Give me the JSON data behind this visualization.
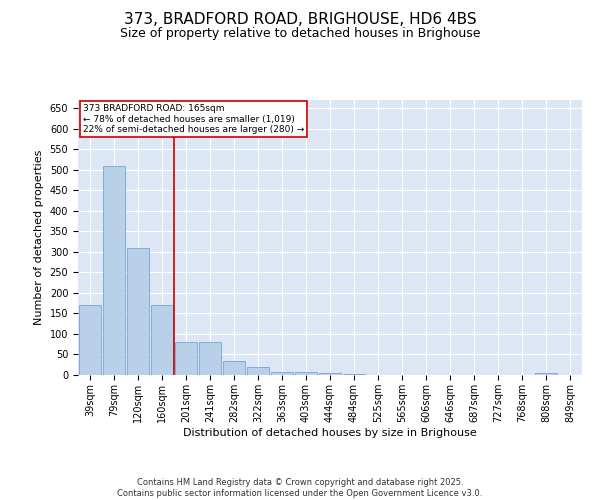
{
  "title": "373, BRADFORD ROAD, BRIGHOUSE, HD6 4BS",
  "subtitle": "Size of property relative to detached houses in Brighouse",
  "xlabel": "Distribution of detached houses by size in Brighouse",
  "ylabel": "Number of detached properties",
  "categories": [
    "39sqm",
    "79sqm",
    "120sqm",
    "160sqm",
    "201sqm",
    "241sqm",
    "282sqm",
    "322sqm",
    "363sqm",
    "403sqm",
    "444sqm",
    "484sqm",
    "525sqm",
    "565sqm",
    "606sqm",
    "646sqm",
    "687sqm",
    "727sqm",
    "768sqm",
    "808sqm",
    "849sqm"
  ],
  "values": [
    170,
    510,
    310,
    170,
    80,
    80,
    35,
    20,
    8,
    8,
    5,
    2,
    1,
    0,
    0,
    0,
    0,
    0,
    0,
    5,
    0
  ],
  "bar_color": "#b8d0e8",
  "bar_edge_color": "#6699cc",
  "background_color": "#dce6f5",
  "grid_color": "#ffffff",
  "vline_color": "#cc0000",
  "annotation_text": "373 BRADFORD ROAD: 165sqm\n← 78% of detached houses are smaller (1,019)\n22% of semi-detached houses are larger (280) →",
  "annotation_box_color": "#cc0000",
  "ylim": [
    0,
    670
  ],
  "yticks": [
    0,
    50,
    100,
    150,
    200,
    250,
    300,
    350,
    400,
    450,
    500,
    550,
    600,
    650
  ],
  "footer": "Contains HM Land Registry data © Crown copyright and database right 2025.\nContains public sector information licensed under the Open Government Licence v3.0.",
  "title_fontsize": 11,
  "subtitle_fontsize": 9,
  "label_fontsize": 8,
  "tick_fontsize": 7,
  "footer_fontsize": 6
}
